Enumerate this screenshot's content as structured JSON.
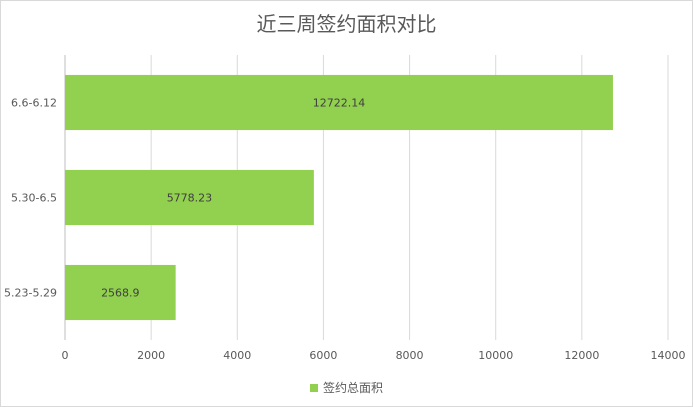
{
  "chart_data": {
    "type": "bar",
    "orientation": "horizontal",
    "title": "近三周签约面积对比",
    "categories": [
      "6.6-6.12",
      "5.30-6.5",
      "5.23-5.29"
    ],
    "series": [
      {
        "name": "签约总面积",
        "values": [
          12722.14,
          5778.23,
          2568.9
        ],
        "color": "#92d050"
      }
    ],
    "value_labels": [
      "12722.14",
      "5778.23",
      "2568.9"
    ],
    "xlim": [
      0,
      14000
    ],
    "xticks": [
      "0",
      "2000",
      "4000",
      "6000",
      "8000",
      "10000",
      "12000",
      "14000"
    ],
    "grid": true,
    "legend_position": "bottom"
  }
}
